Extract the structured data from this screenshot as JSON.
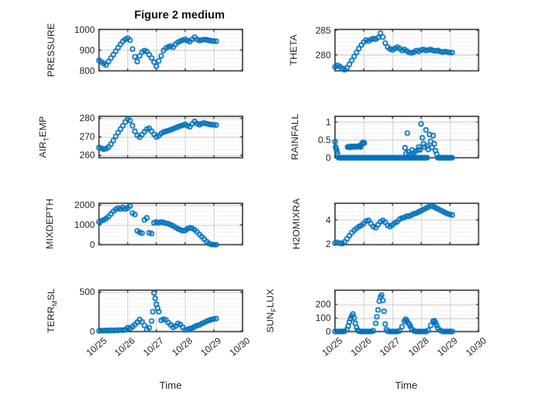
{
  "figure": {
    "title": "Figure 2 medium",
    "xlabel": "Time",
    "colors": {
      "marker": "#0072BD",
      "axis": "#212121",
      "text": "#262626",
      "major_grid": "#c6c6c6",
      "minor_dot": "#c9c9c9",
      "background": "#ffffff"
    }
  },
  "chart_data": {
    "type": "scatter",
    "layout": "4x2 subplot grid, open-circle markers, shared time axis",
    "x_axis": {
      "label": "Time",
      "tick_labels": [
        "10/25",
        "10/26",
        "10/27",
        "10/28",
        "10/29",
        "10/30"
      ],
      "xlim_days": [
        0,
        5
      ],
      "tick_angle_deg": -40
    },
    "grid": {
      "major": true,
      "minor_dotted": true
    },
    "shared_x_days": [
      0,
      0.083,
      0.167,
      0.25,
      0.333,
      0.417,
      0.5,
      0.583,
      0.667,
      0.75,
      0.833,
      0.917,
      1,
      1.083,
      1.167,
      1.25,
      1.333,
      1.417,
      1.5,
      1.583,
      1.667,
      1.75,
      1.833,
      1.917,
      2,
      2.083,
      2.167,
      2.25,
      2.333,
      2.417,
      2.5,
      2.583,
      2.667,
      2.75,
      2.833,
      2.917,
      3,
      3.083,
      3.167,
      3.25,
      3.333,
      3.417,
      3.5,
      3.583,
      3.667,
      3.75,
      3.833,
      3.917,
      4,
      4.083
    ],
    "plots": [
      {
        "name": "PRESSURE",
        "ylabel": {
          "pre": "PRESSURE",
          "sub": "",
          "post": ""
        },
        "ylim": [
          800,
          1000
        ],
        "yticks": [
          800,
          900,
          1000
        ],
        "ytick_labels": [
          "800",
          "900",
          "1000"
        ],
        "x": "shared",
        "y": [
          850,
          843,
          835,
          828,
          845,
          862,
          878,
          895,
          912,
          928,
          942,
          952,
          958,
          948,
          905,
          868,
          845,
          872,
          890,
          898,
          893,
          878,
          862,
          842,
          822,
          848,
          872,
          898,
          910,
          916,
          920,
          914,
          928,
          938,
          944,
          948,
          952,
          946,
          941,
          953,
          963,
          952,
          946,
          949,
          951,
          950,
          947,
          945,
          944,
          943
        ]
      },
      {
        "name": "THETA",
        "ylabel": {
          "pre": "THETA",
          "sub": "",
          "post": ""
        },
        "ylim": [
          276.8,
          285.15
        ],
        "yticks": [
          280,
          285
        ],
        "ytick_labels": [
          "280",
          "285"
        ],
        "x": "shared",
        "y": [
          277.6,
          277.9,
          277.7,
          277.3,
          277,
          277.4,
          278.1,
          278.9,
          279.7,
          280.5,
          281.3,
          282,
          282.6,
          283,
          282.8,
          283.1,
          283.3,
          283.2,
          283.5,
          284.4,
          283.6,
          282.4,
          281.6,
          281.2,
          281,
          281.3,
          281.6,
          281.3,
          280.9,
          281.1,
          280.8,
          280.5,
          280.4,
          280.6,
          280.9,
          280.7,
          281,
          281.1,
          280.9,
          281,
          281.1,
          280.9,
          280.8,
          280.9,
          280.7,
          280.6,
          280.7,
          280.6,
          280.5,
          280.5
        ]
      },
      {
        "name": "AIR_TEMP",
        "ylabel": {
          "pre": "AIR",
          "sub": "T",
          "post": "EMP"
        },
        "ylim": [
          258.7,
          281.1
        ],
        "yticks": [
          260,
          270,
          280
        ],
        "ytick_labels": [
          "260",
          "270",
          "280"
        ],
        "x": "shared",
        "y": [
          264.2,
          263.8,
          263.3,
          263.6,
          264.5,
          266,
          268,
          270.2,
          272.3,
          274.2,
          276,
          278,
          279.8,
          278.8,
          276,
          273,
          270.8,
          269.8,
          271.2,
          272.8,
          274.2,
          274.6,
          273,
          271.4,
          269.9,
          270.6,
          271.8,
          272.6,
          273,
          273.4,
          273.9,
          274.3,
          274.9,
          275.4,
          275.9,
          276.3,
          276.8,
          276,
          275.5,
          277,
          278.3,
          277.2,
          276.6,
          277.2,
          277.6,
          277.1,
          276.8,
          276.6,
          276.5,
          276.4
        ]
      },
      {
        "name": "RAINFALL",
        "ylabel": {
          "pre": "RAINFALL",
          "sub": "",
          "post": ""
        },
        "ylim": [
          0,
          1.16
        ],
        "yticks": [
          0,
          0.5,
          1
        ],
        "ytick_labels": [
          "0",
          "0.5",
          "1"
        ],
        "x": [
          0,
          0.021,
          0.042,
          0.063,
          0.083,
          0.125,
          0.167,
          0.208,
          0.25,
          0.292,
          0.333,
          0.375,
          0.417,
          0.458,
          0.5,
          0.542,
          0.583,
          0.625,
          0.667,
          0.708,
          0.75,
          0.792,
          0.833,
          0.875,
          0.917,
          0.958,
          1,
          0.438,
          0.479,
          0.521,
          0.563,
          0.604,
          0.646,
          0.688,
          0.729,
          0.771,
          0.813,
          0.854,
          0.896,
          0.938,
          0.979,
          1.021,
          1.042,
          1.083,
          1.125,
          1.167,
          1.208,
          1.25,
          1.292,
          1.333,
          1.375,
          1.417,
          1.458,
          1.5,
          1.542,
          1.583,
          1.625,
          1.667,
          1.708,
          1.75,
          1.792,
          1.833,
          1.875,
          1.917,
          1.958,
          2,
          2.042,
          2.083,
          2.125,
          2.167,
          2.208,
          2.25,
          2.292,
          2.333,
          2.375,
          2.417,
          2.458,
          2.5,
          2.542,
          2.583,
          2.625,
          2.667,
          2.708,
          2.75,
          2.792,
          2.833,
          2.875,
          2.917,
          2.958,
          3,
          3.042,
          3.083,
          3.125,
          3.167,
          3.208,
          2.438,
          2.479,
          2.521,
          2.563,
          2.646,
          2.688,
          2.729,
          2.813,
          2.896,
          2.917,
          2.958,
          3,
          3.042,
          3.083,
          3.125,
          3.167,
          3.208,
          3.25,
          3.292,
          3.333,
          3.375,
          3.417,
          3.458,
          3.5,
          3.542,
          3.583,
          3.625,
          3.667,
          3.708,
          3.75,
          3.792,
          3.833,
          3.875,
          3.917,
          3.958,
          4,
          4.042,
          4.083
        ],
        "y": [
          0.45,
          0.3,
          0.25,
          0.18,
          0.12,
          0,
          0,
          0,
          0,
          0,
          0,
          0,
          0,
          0,
          0,
          0,
          0,
          0,
          0,
          0,
          0,
          0,
          0,
          0,
          0,
          0,
          0,
          0.3,
          0.31,
          0.29,
          0.32,
          0.3,
          0.31,
          0.32,
          0.3,
          0.31,
          0.33,
          0.32,
          0.3,
          0.4,
          0.43,
          0.41,
          0,
          0,
          0,
          0,
          0,
          0,
          0,
          0,
          0,
          0,
          0,
          0,
          0,
          0,
          0,
          0,
          0,
          0,
          0,
          0,
          0,
          0,
          0,
          0,
          0,
          0,
          0,
          0,
          0,
          0,
          0,
          0,
          0,
          0,
          0,
          0,
          0,
          0,
          0,
          0,
          0,
          0,
          0,
          0,
          0,
          0,
          0,
          0,
          0,
          0,
          0,
          0,
          0,
          0.28,
          0.12,
          0.69,
          0.16,
          0.1,
          0.22,
          0.13,
          0.18,
          0.22,
          0.3,
          0.22,
          0.95,
          0.56,
          0.39,
          0.3,
          0.78,
          0.33,
          0.23,
          0.65,
          0.46,
          0.29,
          0.62,
          0.39,
          0.2,
          0.1,
          0,
          0,
          0,
          0,
          0,
          0,
          0,
          0,
          0,
          0,
          0,
          0,
          0
        ]
      },
      {
        "name": "MIXDEPTH",
        "ylabel": {
          "pre": "MIXDEPTH",
          "sub": "",
          "post": ""
        },
        "ylim": [
          0,
          2090
        ],
        "yticks": [
          0,
          1000,
          2000
        ],
        "ytick_labels": [
          "0",
          "1000",
          "2000"
        ],
        "x": "shared",
        "y": [
          1150,
          1200,
          1250,
          1320,
          1420,
          1550,
          1680,
          1780,
          1850,
          1800,
          1880,
          1800,
          1850,
          1950,
          1600,
          1520,
          700,
          620,
          580,
          1250,
          1350,
          600,
          560,
          1100,
          1150,
          1100,
          1150,
          1120,
          1080,
          1050,
          1000,
          950,
          870,
          800,
          750,
          700,
          720,
          800,
          850,
          820,
          750,
          650,
          520,
          400,
          280,
          150,
          60,
          10,
          0,
          0
        ]
      },
      {
        "name": "H2OMIXRA",
        "ylabel": {
          "pre": "H2OMIXRA",
          "sub": "",
          "post": ""
        },
        "ylim": [
          1.97,
          5.36
        ],
        "yticks": [
          2,
          4
        ],
        "ytick_labels": [
          "2",
          "4"
        ],
        "x": "shared",
        "y": [
          2.1,
          2.15,
          2.1,
          2.05,
          2.2,
          2.45,
          2.7,
          2.95,
          3.15,
          3.3,
          3.45,
          3.55,
          3.7,
          3.9,
          3.95,
          3.7,
          3.45,
          3.35,
          3.6,
          3.85,
          3.95,
          3.8,
          3.55,
          3.45,
          3.6,
          3.75,
          3.85,
          4.05,
          4.15,
          4.2,
          4.3,
          4.3,
          4.4,
          4.5,
          4.55,
          4.65,
          4.75,
          4.85,
          4.95,
          5.05,
          5.15,
          5.1,
          5,
          4.9,
          4.8,
          4.7,
          4.6,
          4.5,
          4.45,
          4.4
        ]
      },
      {
        "name": "TERR_MSL",
        "ylabel": {
          "pre": "TERR",
          "sub": "M",
          "post": "SL"
        },
        "ylim": [
          -4,
          526
        ],
        "yticks": [
          0,
          500
        ],
        "ytick_labels": [
          "0",
          "500"
        ],
        "x": [
          0,
          0.083,
          0.167,
          0.25,
          0.333,
          0.417,
          0.5,
          0.583,
          0.667,
          0.75,
          0.833,
          0.917,
          1,
          1.083,
          1.167,
          1.25,
          1.333,
          1.417,
          1.5,
          1.583,
          1.667,
          1.75,
          1.833,
          1.875,
          1.917,
          1.958,
          2,
          2.042,
          2.083,
          2.167,
          2.25,
          2.333,
          2.417,
          2.5,
          2.583,
          2.667,
          2.75,
          2.833,
          2.917,
          3,
          3.083,
          3.167,
          3.25,
          3.333,
          3.417,
          3.5,
          3.583,
          3.667,
          3.75,
          3.833,
          3.917,
          4,
          4.083
        ],
        "y": [
          5,
          8,
          6,
          10,
          8,
          12,
          10,
          14,
          12,
          16,
          14,
          22,
          45,
          35,
          60,
          85,
          115,
          150,
          120,
          75,
          25,
          45,
          130,
          250,
          490,
          420,
          345,
          295,
          250,
          140,
          155,
          145,
          110,
          80,
          50,
          65,
          100,
          85,
          50,
          18,
          22,
          35,
          42,
          58,
          72,
          82,
          98,
          112,
          128,
          140,
          150,
          158,
          162
        ]
      },
      {
        "name": "SUN_FLUX",
        "ylabel": {
          "pre": "SUN",
          "sub": "F",
          "post": "LUX"
        },
        "ylim": [
          -0.5,
          306
        ],
        "yticks": [
          0,
          100,
          200
        ],
        "ytick_labels": [
          "0",
          "100",
          "200"
        ],
        "x": [
          0,
          0.083,
          0.167,
          0.25,
          0.333,
          0.417,
          0.458,
          0.5,
          0.542,
          0.583,
          0.625,
          0.667,
          0.708,
          0.75,
          0.792,
          0.833,
          0.917,
          1,
          1.083,
          1.167,
          1.25,
          1.333,
          1.417,
          1.458,
          1.5,
          1.542,
          1.583,
          1.625,
          1.667,
          1.708,
          1.75,
          1.792,
          1.833,
          1.917,
          2,
          2.083,
          2.167,
          2.25,
          2.333,
          2.417,
          2.458,
          2.5,
          2.542,
          2.583,
          2.625,
          2.667,
          2.75,
          2.833,
          2.917,
          3,
          3.083,
          3.167,
          3.25,
          3.333,
          3.417,
          3.458,
          3.5,
          3.542,
          3.583,
          3.667,
          3.75,
          3.833,
          3.917,
          4,
          4.083
        ],
        "y": [
          0,
          0,
          0,
          0,
          2,
          15,
          40,
          70,
          95,
          115,
          130,
          100,
          60,
          30,
          10,
          2,
          0,
          0,
          0,
          0,
          0,
          5,
          60,
          110,
          160,
          225,
          255,
          270,
          230,
          150,
          55,
          15,
          2,
          0,
          0,
          0,
          0,
          5,
          35,
          75,
          90,
          80,
          65,
          55,
          40,
          20,
          5,
          0,
          0,
          0,
          0,
          0,
          10,
          45,
          75,
          80,
          65,
          45,
          25,
          8,
          0,
          0,
          0,
          0,
          0
        ]
      }
    ]
  }
}
